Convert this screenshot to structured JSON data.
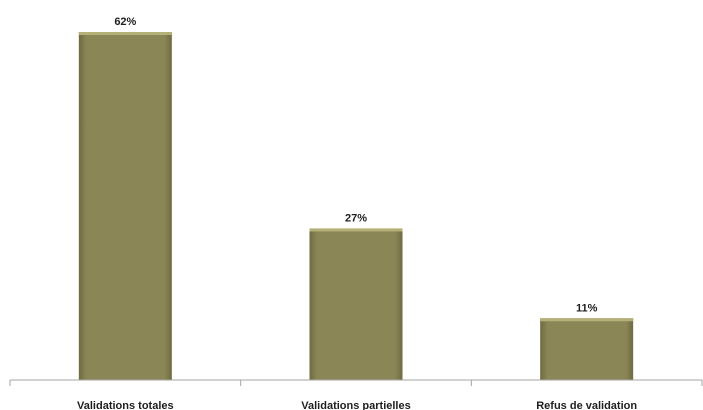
{
  "chart_data": {
    "type": "bar",
    "title": "",
    "xlabel": "",
    "ylabel": "",
    "categories": [
      "Validations totales",
      "Validations partielles",
      "Refus de validation"
    ],
    "values": [
      62,
      27,
      11
    ],
    "data_labels": [
      "62%",
      "27%",
      "11%"
    ],
    "ylim": [
      0,
      70
    ],
    "grid": false,
    "legend": "none",
    "colors": {
      "bar_fill": "#8b8656",
      "bar_top": "#b5af78",
      "bar_edge": "#6e6a42",
      "axis": "#a6a6a6"
    }
  }
}
